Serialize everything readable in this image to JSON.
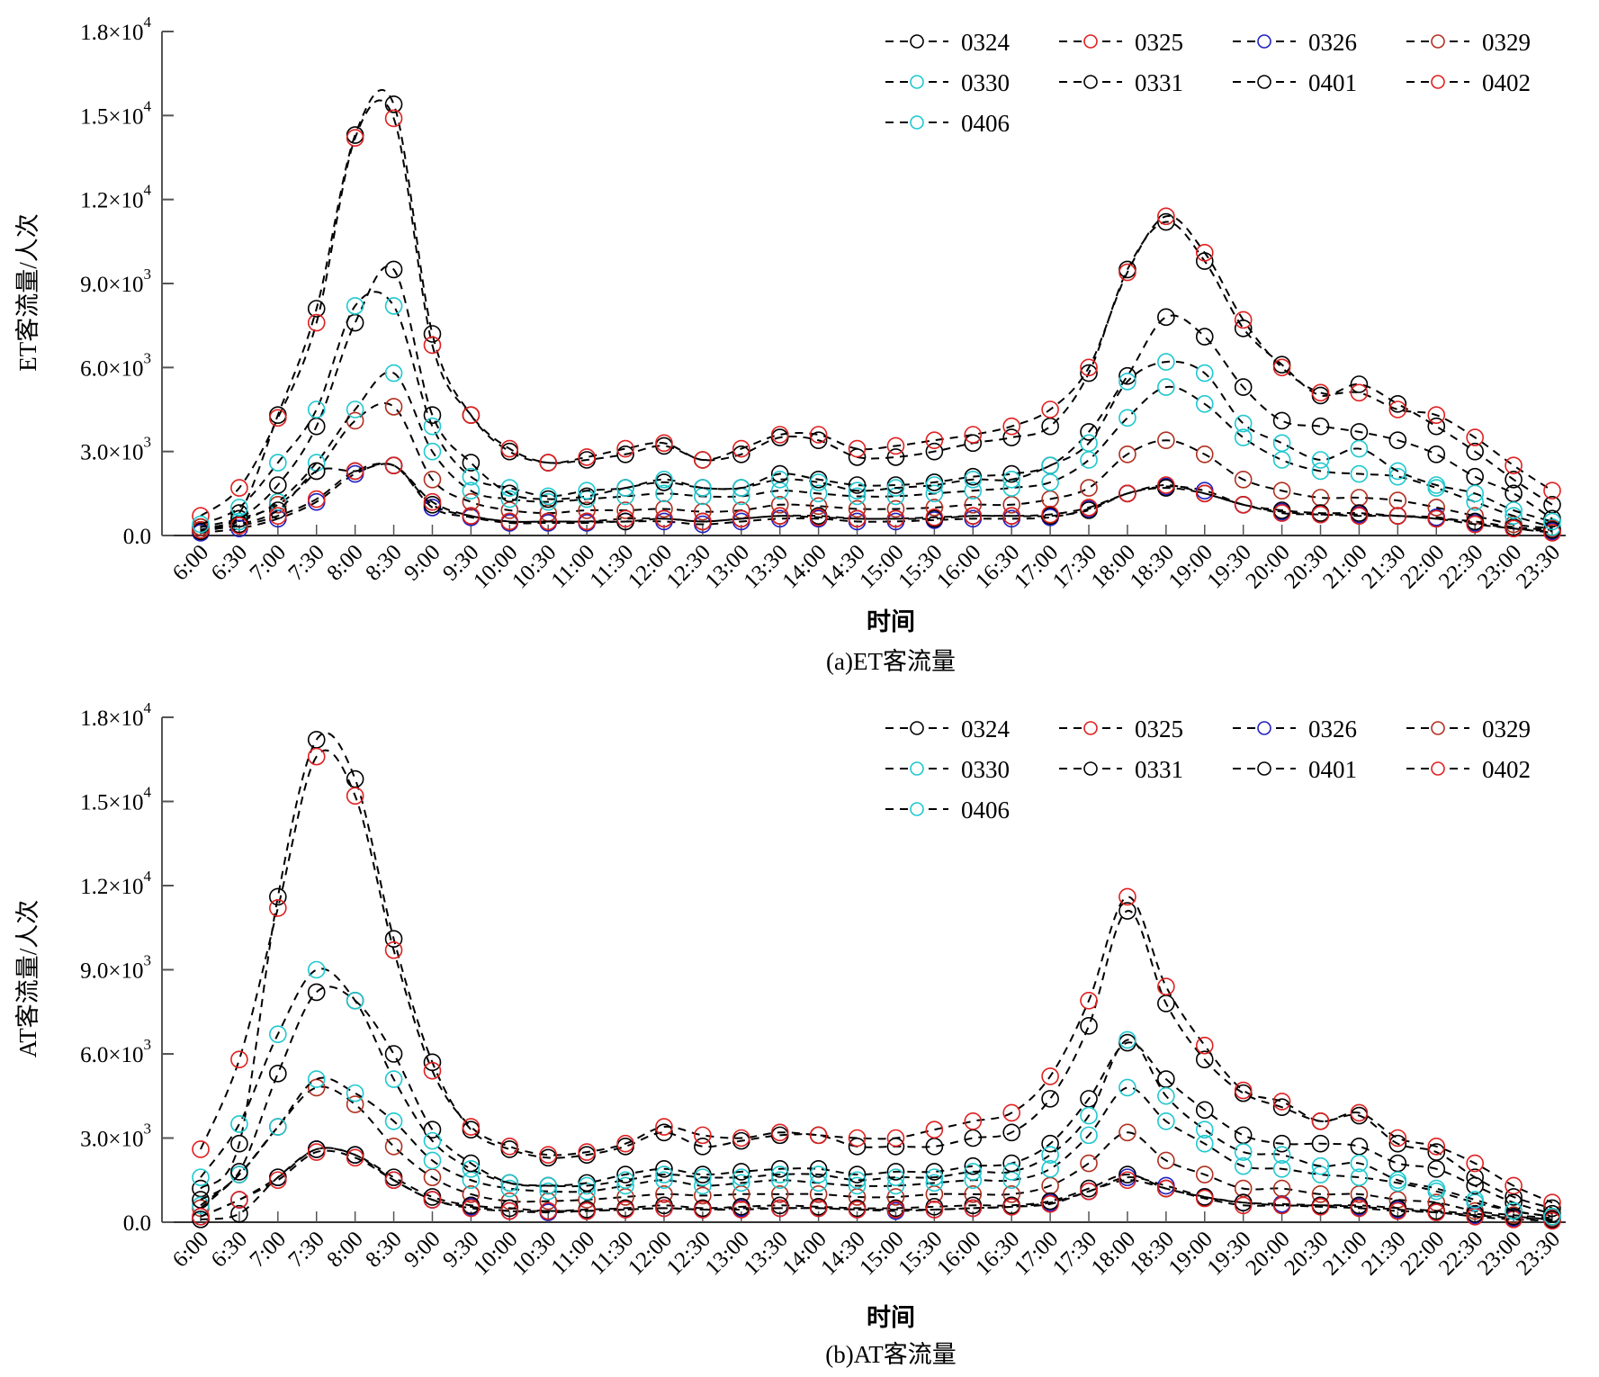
{
  "chart_data": [
    {
      "type": "line",
      "panel": "a",
      "caption": "(a)ET客流量",
      "xlabel": "时间",
      "ylabel": "ET客流量/人次",
      "ylim": [
        0,
        18000
      ],
      "yticks": [
        0,
        3000,
        6000,
        9000,
        12000,
        15000,
        18000
      ],
      "ytick_labels": [
        {
          "mant": "0.0",
          "exp": ""
        },
        {
          "mant": "3.0×10",
          "exp": "3"
        },
        {
          "mant": "6.0×10",
          "exp": "3"
        },
        {
          "mant": "9.0×10",
          "exp": "3"
        },
        {
          "mant": "1.2×10",
          "exp": "4"
        },
        {
          "mant": "1.5×10",
          "exp": "4"
        },
        {
          "mant": "1.8×10",
          "exp": "4"
        }
      ],
      "legend_position": "top-right",
      "grid": false,
      "x": [
        "6:00",
        "6:30",
        "7:00",
        "7:30",
        "8:00",
        "8:30",
        "9:00",
        "9:30",
        "10:00",
        "10:30",
        "11:00",
        "11:30",
        "12:00",
        "12:30",
        "13:00",
        "13:30",
        "14:00",
        "14:30",
        "15:00",
        "15:30",
        "16:00",
        "16:30",
        "17:00",
        "17:30",
        "18:00",
        "18:30",
        "19:00",
        "19:30",
        "20:00",
        "20:30",
        "21:00",
        "21:30",
        "22:00",
        "22:30",
        "23:00",
        "23:30"
      ],
      "series": [
        {
          "name": "0324",
          "color": "#000000",
          "values": [
            300,
            800,
            4300,
            8100,
            14300,
            15400,
            7200,
            4300,
            3000,
            2600,
            2700,
            2900,
            3200,
            2700,
            2900,
            3500,
            3400,
            2800,
            2800,
            3000,
            3300,
            3500,
            3900,
            5800,
            9500,
            11200,
            9800,
            7400,
            6100,
            5000,
            5400,
            4700,
            3900,
            3000,
            2000,
            1100
          ]
        },
        {
          "name": "0325",
          "color": "#e02020",
          "values": [
            700,
            1700,
            4200,
            7600,
            14200,
            14900,
            6800,
            4300,
            3100,
            2600,
            2800,
            3100,
            3300,
            2700,
            3100,
            3600,
            3600,
            3100,
            3200,
            3400,
            3600,
            3900,
            4500,
            6000,
            9400,
            11400,
            10100,
            7700,
            6000,
            5100,
            5100,
            4500,
            4300,
            3500,
            2500,
            1600
          ]
        },
        {
          "name": "0326",
          "color": "#2020c0",
          "values": [
            100,
            250,
            600,
            1200,
            2200,
            2500,
            1000,
            650,
            450,
            450,
            450,
            500,
            500,
            400,
            500,
            600,
            600,
            500,
            500,
            550,
            600,
            600,
            650,
            950,
            1500,
            1750,
            1600,
            1100,
            850,
            750,
            750,
            700,
            650,
            450,
            250,
            150
          ]
        },
        {
          "name": "0329",
          "color": "#b03020",
          "values": [
            300,
            600,
            1100,
            2300,
            4100,
            4600,
            2000,
            1200,
            900,
            800,
            900,
            900,
            950,
            850,
            900,
            1100,
            1050,
            950,
            950,
            1000,
            1100,
            1100,
            1300,
            1700,
            2900,
            3400,
            2900,
            2000,
            1600,
            1350,
            1350,
            1250,
            1000,
            700,
            400,
            250
          ]
        },
        {
          "name": "0330",
          "color": "#20c8d0",
          "values": [
            200,
            500,
            1200,
            2600,
            4500,
            5800,
            3000,
            1600,
            1300,
            1200,
            1300,
            1400,
            1500,
            1400,
            1400,
            1600,
            1500,
            1400,
            1400,
            1500,
            1600,
            1700,
            1900,
            2700,
            4200,
            5300,
            4700,
            3500,
            2700,
            2300,
            2200,
            2100,
            1700,
            1200,
            700,
            300
          ]
        },
        {
          "name": "0331",
          "color": "#000000",
          "values": [
            200,
            600,
            1800,
            3900,
            7600,
            9500,
            4300,
            2600,
            1500,
            1300,
            1400,
            1700,
            1900,
            1700,
            1700,
            2200,
            2000,
            1800,
            1800,
            1900,
            2100,
            2200,
            2500,
            3700,
            5700,
            7800,
            7100,
            5300,
            4100,
            3900,
            3700,
            3400,
            2900,
            2100,
            1500,
            600
          ]
        },
        {
          "name": "0401",
          "color": "#000000",
          "values": [
            150,
            400,
            900,
            2300,
            2300,
            2500,
            1100,
            700,
            500,
            500,
            500,
            500,
            600,
            500,
            600,
            700,
            700,
            600,
            600,
            600,
            700,
            700,
            700,
            900,
            1500,
            1700,
            1500,
            1100,
            900,
            800,
            800,
            700,
            600,
            500,
            300,
            200
          ]
        },
        {
          "name": "0402",
          "color": "#e02020",
          "values": [
            200,
            350,
            700,
            1300,
            2300,
            2500,
            1200,
            700,
            500,
            500,
            500,
            600,
            600,
            500,
            600,
            700,
            650,
            600,
            600,
            650,
            700,
            700,
            750,
            1000,
            1500,
            1800,
            1500,
            1100,
            800,
            750,
            700,
            700,
            600,
            400,
            250,
            100
          ]
        },
        {
          "name": "0406",
          "color": "#20c8d0",
          "values": [
            400,
            1000,
            2600,
            4500,
            8200,
            8200,
            3900,
            2100,
            1700,
            1400,
            1600,
            1700,
            2000,
            1700,
            1700,
            2000,
            1900,
            1600,
            1700,
            1800,
            2000,
            2000,
            2500,
            3300,
            5500,
            6200,
            5800,
            4000,
            3300,
            2700,
            3100,
            2300,
            1800,
            1500,
            900,
            500
          ]
        }
      ]
    },
    {
      "type": "line",
      "panel": "b",
      "caption": "(b)AT客流量",
      "xlabel": "时间",
      "ylabel": "AT客流量/人次",
      "ylim": [
        0,
        18000
      ],
      "yticks": [
        0,
        3000,
        6000,
        9000,
        12000,
        15000,
        18000
      ],
      "ytick_labels": [
        {
          "mant": "0.0",
          "exp": ""
        },
        {
          "mant": "3.0×10",
          "exp": "3"
        },
        {
          "mant": "6.0×10",
          "exp": "3"
        },
        {
          "mant": "9.0×10",
          "exp": "3"
        },
        {
          "mant": "1.2×10",
          "exp": "4"
        },
        {
          "mant": "1.5×10",
          "exp": "4"
        },
        {
          "mant": "1.8×10",
          "exp": "4"
        }
      ],
      "legend_position": "top-right",
      "grid": false,
      "x": [
        "6:00",
        "6:30",
        "7:00",
        "7:30",
        "8:00",
        "8:30",
        "9:00",
        "9:30",
        "10:00",
        "10:30",
        "11:00",
        "11:30",
        "12:00",
        "12:30",
        "13:00",
        "13:30",
        "14:00",
        "14:30",
        "15:00",
        "15:30",
        "16:00",
        "16:30",
        "17:00",
        "17:30",
        "18:00",
        "18:30",
        "19:00",
        "19:30",
        "20:00",
        "20:30",
        "21:00",
        "21:30",
        "22:00",
        "22:30",
        "23:00",
        "23:30"
      ],
      "series": [
        {
          "name": "0324",
          "color": "#000000",
          "values": [
            1200,
            2800,
            11600,
            17200,
            15800,
            10100,
            5700,
            3300,
            2600,
            2300,
            2400,
            2700,
            3200,
            2700,
            2900,
            3100,
            3100,
            2700,
            2700,
            2700,
            3000,
            3200,
            4400,
            7000,
            11100,
            7800,
            5800,
            4600,
            4100,
            3600,
            3800,
            2800,
            2500,
            1600,
            900,
            500
          ]
        },
        {
          "name": "0325",
          "color": "#e02020",
          "values": [
            2600,
            5800,
            11200,
            16600,
            15200,
            9700,
            5400,
            3400,
            2700,
            2400,
            2500,
            2800,
            3400,
            3100,
            3000,
            3200,
            3100,
            3000,
            3000,
            3300,
            3600,
            3900,
            5200,
            7900,
            11600,
            8400,
            6300,
            4700,
            4300,
            3600,
            3900,
            3000,
            2700,
            2100,
            1300,
            700
          ]
        },
        {
          "name": "0326",
          "color": "#2020c0",
          "values": [
            200,
            800,
            1600,
            2600,
            2400,
            1500,
            800,
            550,
            400,
            350,
            400,
            450,
            500,
            450,
            500,
            500,
            500,
            450,
            400,
            450,
            500,
            550,
            700,
            1100,
            1600,
            1300,
            900,
            700,
            650,
            600,
            550,
            450,
            350,
            250,
            150,
            100
          ]
        },
        {
          "name": "0329",
          "color": "#b03020",
          "values": [
            500,
            1700,
            3400,
            4800,
            4200,
            2700,
            1600,
            1000,
            750,
            750,
            800,
            900,
            1000,
            950,
            1000,
            1000,
            1000,
            900,
            900,
            1000,
            1000,
            1000,
            1300,
            2100,
            3200,
            2200,
            1700,
            1200,
            1200,
            1000,
            1000,
            800,
            700,
            400,
            250,
            150
          ]
        },
        {
          "name": "0330",
          "color": "#20c8d0",
          "values": [
            600,
            1700,
            3400,
            5100,
            4600,
            3600,
            2200,
            1500,
            1200,
            1100,
            1100,
            1300,
            1500,
            1300,
            1400,
            1500,
            1400,
            1300,
            1300,
            1400,
            1500,
            1500,
            1900,
            3100,
            4800,
            3600,
            2800,
            2000,
            1900,
            1700,
            1600,
            1400,
            1100,
            700,
            400,
            200
          ]
        },
        {
          "name": "0331",
          "color": "#000000",
          "values": [
            800,
            1800,
            5300,
            8200,
            7900,
            6000,
            3300,
            2100,
            1400,
            1300,
            1400,
            1700,
            1900,
            1700,
            1800,
            1900,
            1900,
            1700,
            1800,
            1800,
            2000,
            2100,
            2800,
            4400,
            6400,
            5100,
            4000,
            3100,
            2800,
            2800,
            2700,
            2100,
            1900,
            1300,
            700,
            300
          ]
        },
        {
          "name": "0401",
          "color": "#000000",
          "values": [
            100,
            300,
            1600,
            2600,
            2400,
            1600,
            900,
            600,
            500,
            400,
            450,
            500,
            600,
            500,
            550,
            600,
            550,
            500,
            500,
            550,
            600,
            600,
            750,
            1200,
            1700,
            1200,
            900,
            700,
            600,
            600,
            600,
            500,
            400,
            300,
            200,
            100
          ]
        },
        {
          "name": "0402",
          "color": "#e02020",
          "values": [
            200,
            800,
            1500,
            2500,
            2300,
            1500,
            800,
            500,
            400,
            400,
            400,
            450,
            500,
            450,
            450,
            500,
            500,
            450,
            450,
            450,
            500,
            550,
            650,
            1100,
            1500,
            1200,
            850,
            600,
            600,
            550,
            500,
            400,
            350,
            200,
            100,
            50
          ]
        },
        {
          "name": "0406",
          "color": "#20c8d0",
          "values": [
            1600,
            3500,
            6700,
            9000,
            7900,
            5100,
            2900,
            1900,
            1400,
            1300,
            1300,
            1500,
            1700,
            1600,
            1600,
            1700,
            1700,
            1500,
            1600,
            1600,
            1800,
            1800,
            2400,
            3800,
            6500,
            4500,
            3300,
            2500,
            2400,
            2000,
            2100,
            1500,
            1200,
            800,
            400,
            200
          ]
        }
      ]
    }
  ]
}
